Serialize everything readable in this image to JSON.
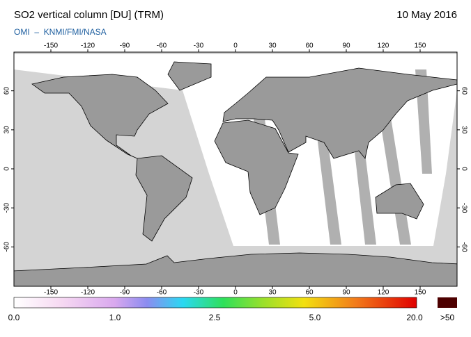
{
  "header": {
    "title": "SO2 vertical column [DU] (TRM)",
    "date": "10 May 2016",
    "source": "OMI  –  KNMI/FMI/NASA"
  },
  "map": {
    "lon_ticks": [
      -150,
      -120,
      -90,
      -60,
      -30,
      0,
      30,
      60,
      90,
      120,
      150
    ],
    "lat_ticks": [
      60,
      30,
      0,
      -30,
      -60
    ]
  },
  "colorbar": {
    "labels": [
      "0.0",
      "1.0",
      "2.5",
      "5.0",
      "20.0",
      ">50"
    ]
  }
}
